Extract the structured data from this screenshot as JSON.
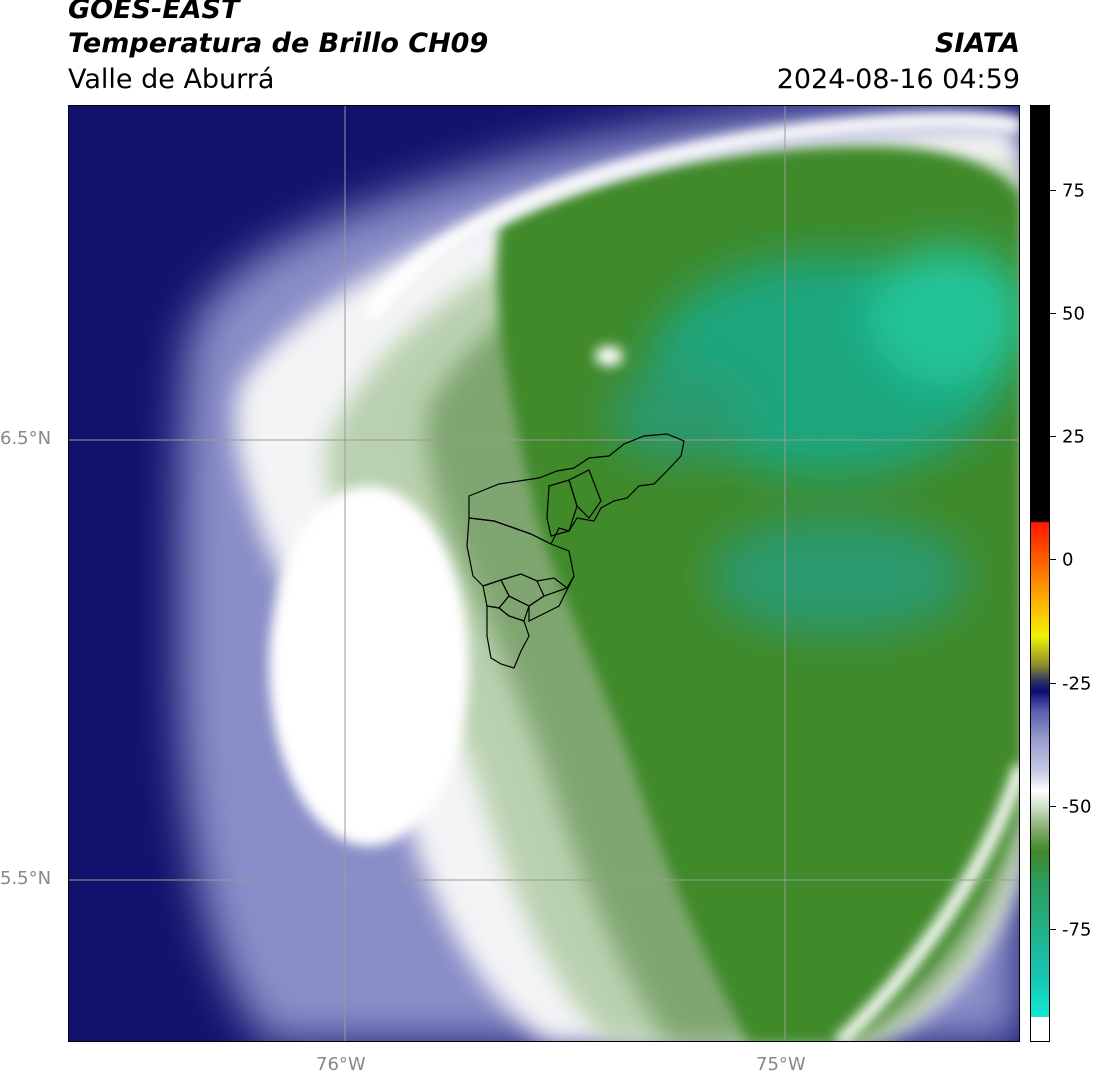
{
  "header": {
    "satellite": "GOES-EAST",
    "product": "Temperatura de Brillo CH09",
    "region": "Valle de Aburrá",
    "agency": "SIATA",
    "datetime": "2024-08-16 04:59"
  },
  "map": {
    "lat_labels": [
      "6.5°N",
      "5.5°N"
    ],
    "lon_labels": [
      "76°W",
      "75°W"
    ],
    "gridline_color": "#9a9a9a",
    "boundary_color": "#000000"
  },
  "colorbar": {
    "ticks": [
      "75",
      "50",
      "25",
      "0",
      "-25",
      "-50",
      "-75"
    ],
    "colors": {
      "cyan": "#12e6d6",
      "teal": "#22b08a",
      "green": "#3f8a2a",
      "light_green": "#c8dcc0",
      "white": "#ffffff",
      "lavender": "#9a9ed0",
      "navy": "#0a0a78",
      "yellow": "#f2f200",
      "orange": "#ff8800",
      "red": "#ff1a00",
      "black": "#000000"
    }
  }
}
